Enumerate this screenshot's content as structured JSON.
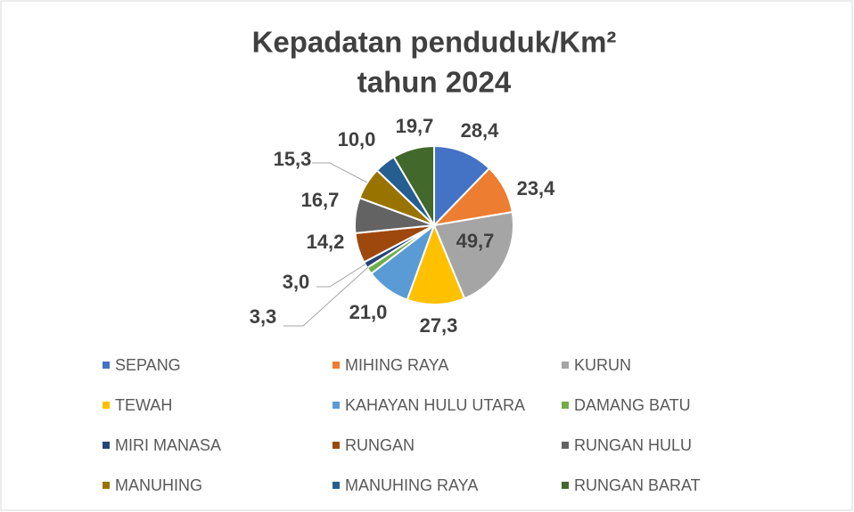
{
  "chart_data": {
    "type": "pie",
    "title": [
      "Kepadatan  penduduk/Km²",
      "tahun 2024"
    ],
    "categories": [
      "SEPANG",
      "MIHING RAYA",
      "KURUN",
      "TEWAH",
      "KAHAYAN HULU UTARA",
      "DAMANG BATU",
      "MIRI MANASA",
      "RUNGAN",
      "RUNGAN HULU",
      "MANUHING",
      "MANUHING RAYA",
      "RUNGAN BARAT"
    ],
    "values": [
      28.4,
      23.4,
      49.7,
      27.3,
      21.0,
      3.3,
      3.0,
      14.2,
      16.7,
      15.3,
      10.0,
      19.7
    ],
    "value_labels": [
      "28,4",
      "23,4",
      "49,7",
      "27,3",
      "21,0",
      "3,3",
      "3,0",
      "14,2",
      "16,7",
      "15,3",
      "10,0",
      "19,7"
    ],
    "colors": [
      "#4472c4",
      "#ed7d31",
      "#a5a5a5",
      "#ffc000",
      "#5b9bd5",
      "#70ad47",
      "#264478",
      "#9e480e",
      "#636363",
      "#997300",
      "#255e91",
      "#43682b"
    ],
    "legend": "bottom"
  }
}
